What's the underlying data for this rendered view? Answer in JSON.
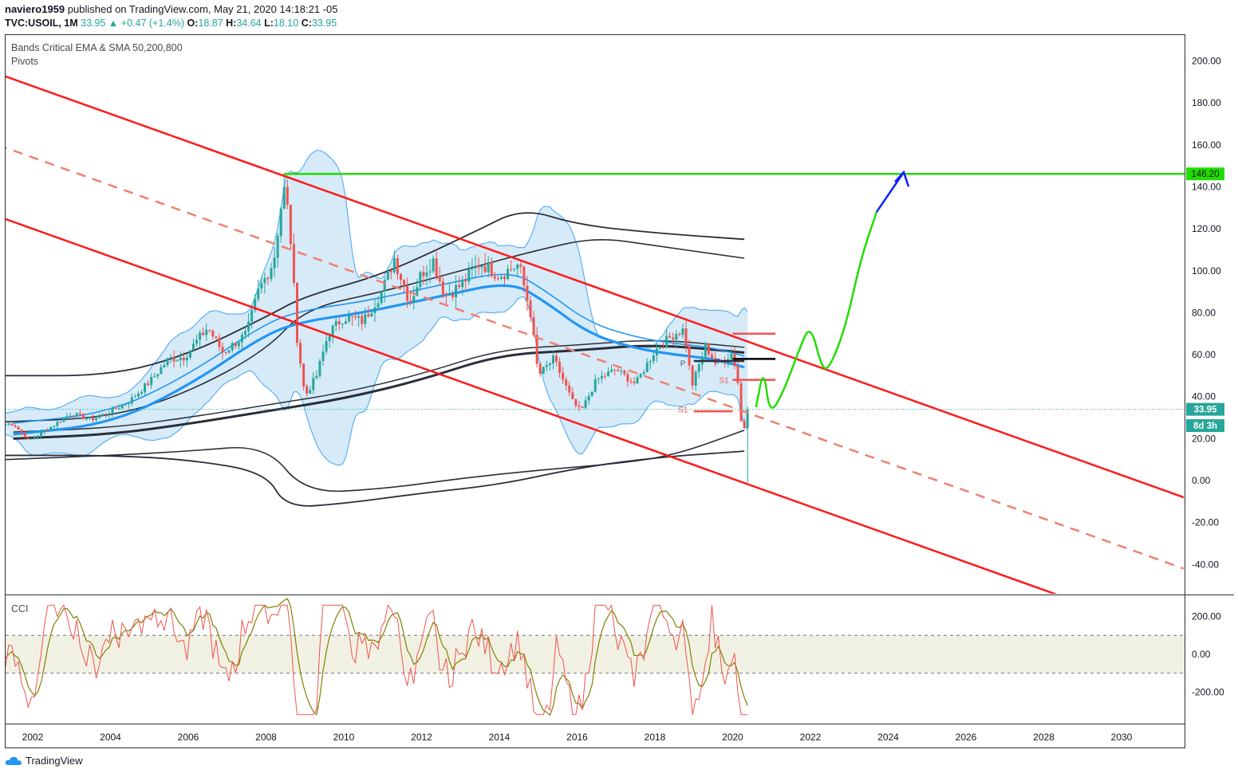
{
  "header": {
    "publisher": "naviero1959",
    "published_text": "published on TradingView.com, May 21, 2020 14:18:21 -05",
    "symbol": "TVC:USOIL, 1M",
    "last": "33.95",
    "change": "+0.47 (+1.4%)",
    "o_label": "O:",
    "o": "18.87",
    "h_label": "H:",
    "h": "34.64",
    "l_label": "L:",
    "l": "18.10",
    "c_label": "C:",
    "c": "33.95"
  },
  "indicators": {
    "bands": "Bands Critical EMA & SMA 50,200,800",
    "pivots": "Pivots",
    "cci": "CCI"
  },
  "footer": {
    "brand": "TradingView"
  },
  "colors": {
    "channel": "#ff1a1a",
    "channel_mid": "#f08070",
    "target": "#22dd00",
    "arrow": "#0a20ff",
    "band_fill": "#cfe6f7",
    "ema": "#2196f3",
    "sma": "#2a2e39",
    "cci_fill": "#f1f1e3",
    "cci_line": "#ef5350",
    "cci_slow": "#808000"
  },
  "chart_data": {
    "type": "candlestick",
    "symbol": "TVC:USOIL",
    "interval": "1M",
    "x_ticks": [
      "2002",
      "2004",
      "2006",
      "2008",
      "2010",
      "2012",
      "2014",
      "2016",
      "2018",
      "2020",
      "2022",
      "2024",
      "2026",
      "2028",
      "2030"
    ],
    "y_ticks": [
      "200.00",
      "180.00",
      "160.00",
      "140.00",
      "120.00",
      "100.00",
      "80.00",
      "60.00",
      "40.00",
      "20.00",
      "0.00",
      "-20.00",
      "-40.00"
    ],
    "ylim": [
      -52,
      213
    ],
    "price_labels": {
      "target": "146.20",
      "last": "33.95",
      "countdown": "8d 3h"
    },
    "pivot_labels": [
      "P",
      "P",
      "S1",
      "S1"
    ],
    "close_path": [
      [
        "2001.5",
        27
      ],
      [
        "2001.9",
        19
      ],
      [
        "2002.5",
        26
      ],
      [
        "2003.0",
        32
      ],
      [
        "2003.5",
        29
      ],
      [
        "2004.0",
        33
      ],
      [
        "2004.5",
        38
      ],
      [
        "2005.0",
        47
      ],
      [
        "2005.5",
        58
      ],
      [
        "2005.9",
        59
      ],
      [
        "2006.5",
        73
      ],
      [
        "2006.9",
        61
      ],
      [
        "2007.5",
        70
      ],
      [
        "2007.8",
        90
      ],
      [
        "2008.2",
        105
      ],
      [
        "2008.45",
        140
      ],
      [
        "2008.6",
        124
      ],
      [
        "2008.8",
        68
      ],
      [
        "2009.0",
        40
      ],
      [
        "2009.3",
        50
      ],
      [
        "2009.6",
        70
      ],
      [
        "2010.0",
        78
      ],
      [
        "2010.5",
        76
      ],
      [
        "2011.0",
        91
      ],
      [
        "2011.3",
        106
      ],
      [
        "2011.7",
        85
      ],
      [
        "2012.0",
        99
      ],
      [
        "2012.3",
        105
      ],
      [
        "2012.6",
        88
      ],
      [
        "2013.0",
        93
      ],
      [
        "2013.5",
        104
      ],
      [
        "2014.0",
        98
      ],
      [
        "2014.5",
        103
      ],
      [
        "2014.8",
        80
      ],
      [
        "2015.0",
        50
      ],
      [
        "2015.4",
        58
      ],
      [
        "2015.9",
        37
      ],
      [
        "2016.1",
        33
      ],
      [
        "2016.5",
        48
      ],
      [
        "2017.0",
        53
      ],
      [
        "2017.5",
        46
      ],
      [
        "2018.0",
        62
      ],
      [
        "2018.5",
        70
      ],
      [
        "2018.75",
        72
      ],
      [
        "2018.95",
        45
      ],
      [
        "2019.3",
        64
      ],
      [
        "2019.6",
        55
      ],
      [
        "2020.0",
        61
      ],
      [
        "2020.15",
        45
      ],
      [
        "2020.25",
        20
      ],
      [
        "2020.38",
        33.95
      ]
    ],
    "ema_50": [
      [
        "2001.5",
        22
      ],
      [
        "2004",
        27
      ],
      [
        "2006",
        45
      ],
      [
        "2008",
        70
      ],
      [
        "2009",
        76
      ],
      [
        "2010.5",
        80
      ],
      [
        "2012.5",
        88
      ],
      [
        "2014.3",
        95
      ],
      [
        "2015.2",
        85
      ],
      [
        "2016.3",
        70
      ],
      [
        "2017.5",
        63
      ],
      [
        "2018.5",
        60
      ],
      [
        "2019.5",
        58
      ],
      [
        "2020.3",
        54
      ]
    ],
    "sma_200": [
      [
        "2001.5",
        20
      ],
      [
        "2004",
        22
      ],
      [
        "2006",
        27
      ],
      [
        "2008",
        33
      ],
      [
        "2010",
        39
      ],
      [
        "2012",
        48
      ],
      [
        "2014",
        60
      ],
      [
        "2016",
        62
      ],
      [
        "2018",
        65
      ],
      [
        "2020.3",
        61
      ]
    ],
    "sma_800_bands": {
      "upper_2020": 115,
      "lower_2020": 14
    },
    "channel_upper": {
      "start": [
        "2001.1",
        194
      ],
      "end": [
        "2031.6",
        -8
      ]
    },
    "channel_mid": {
      "start": [
        "2001.1",
        160
      ],
      "end": [
        "2031.6",
        -42
      ]
    },
    "channel_lower": {
      "start": [
        "2001.1",
        126
      ],
      "end": [
        "2031.6",
        -76
      ]
    },
    "target_level": {
      "value": 146.2,
      "from": "2008.45"
    },
    "projection": [
      [
        "2020.6",
        35
      ],
      [
        "2020.8",
        54
      ],
      [
        "2020.95",
        31
      ],
      [
        "2021.3",
        42
      ],
      [
        "2021.7",
        62
      ],
      [
        "2022.0",
        75
      ],
      [
        "2022.3",
        53
      ],
      [
        "2022.5",
        54
      ],
      [
        "2022.9",
        73
      ],
      [
        "2023.3",
        106
      ],
      [
        "2023.7",
        128
      ]
    ],
    "projection_arrow": {
      "from": [
        "2023.7",
        128
      ],
      "to": [
        "2024.4",
        147
      ]
    },
    "cci": {
      "ticks": [
        "200.00",
        "0.00",
        "-200.00"
      ],
      "ylim": [
        -375,
        400
      ],
      "bands": [
        100,
        -100
      ]
    }
  }
}
